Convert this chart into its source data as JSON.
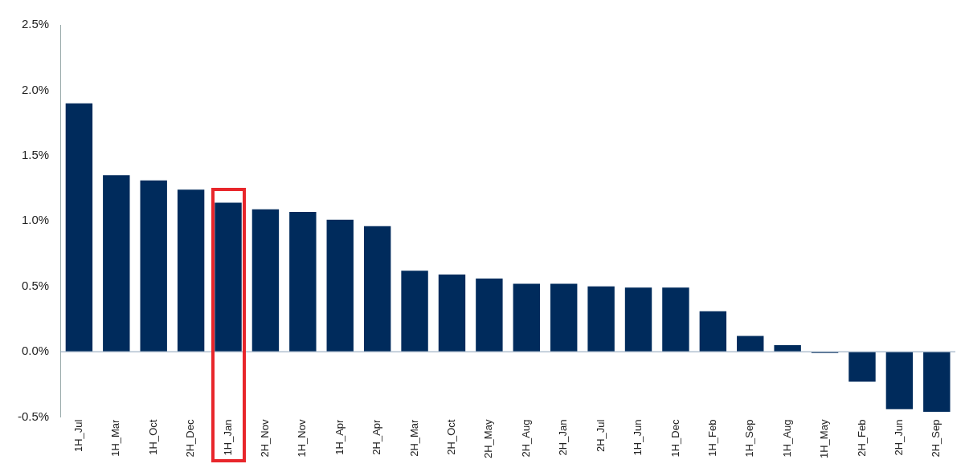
{
  "chart_data": {
    "type": "bar",
    "categories": [
      "1H_Jul",
      "1H_Mar",
      "1H_Oct",
      "2H_Dec",
      "1H_Jan",
      "2H_Nov",
      "1H_Nov",
      "1H_Apr",
      "2H_Apr",
      "2H_Mar",
      "2H_Oct",
      "2H_May",
      "2H_Aug",
      "2H_Jan",
      "2H_Jul",
      "1H_Jun",
      "1H_Dec",
      "1H_Feb",
      "1H_Sep",
      "1H_Aug",
      "1H_May",
      "2H_Feb",
      "2H_Jun",
      "2H_Sep"
    ],
    "values": [
      1.9,
      1.35,
      1.31,
      1.24,
      1.14,
      1.09,
      1.07,
      1.01,
      0.96,
      0.62,
      0.59,
      0.56,
      0.52,
      0.52,
      0.5,
      0.49,
      0.49,
      0.31,
      0.12,
      0.05,
      -0.01,
      -0.23,
      -0.44,
      -0.46
    ],
    "color": "#002b5c",
    "ylim": [
      -0.5,
      2.5
    ],
    "yticks": [
      {
        "value": -0.5,
        "label": "-0.5%"
      },
      {
        "value": 0,
        "label": "0.0%"
      },
      {
        "value": 0.5,
        "label": "0.5%"
      },
      {
        "value": 1,
        "label": "1.0%"
      },
      {
        "value": 1.5,
        "label": "1.5%"
      },
      {
        "value": 2,
        "label": "2.0%"
      },
      {
        "value": 2.5,
        "label": "2.5%"
      }
    ],
    "ref_lines": [
      {
        "axis": "y",
        "value": 0,
        "color": "#8aa0b8"
      }
    ],
    "grid": false,
    "legend": false
  }
}
